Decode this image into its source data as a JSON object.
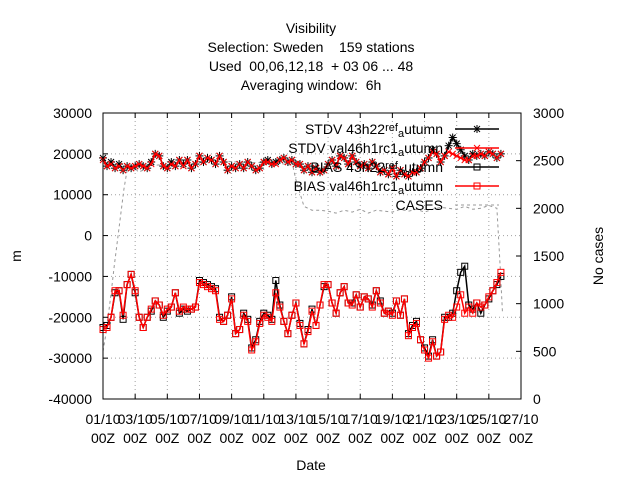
{
  "chart_data": {
    "type": "line",
    "title_lines": [
      "Visibility",
      "Selection: Sweden    159 stations",
      "Used  00,06,12,18  + 03 06 ... 48",
      "Averaging window:  6h"
    ],
    "xlabel": "Date",
    "ylabel": "m",
    "y2label": "No cases",
    "xlim": [
      1,
      27
    ],
    "ylim": [
      -40000,
      30000
    ],
    "y2lim": [
      0,
      3000
    ],
    "x_ticks": [
      {
        "x": 1,
        "line1": "01/10",
        "line2": "00Z"
      },
      {
        "x": 3,
        "line1": "03/10",
        "line2": "00Z"
      },
      {
        "x": 5,
        "line1": "05/10",
        "line2": "00Z"
      },
      {
        "x": 7,
        "line1": "07/10",
        "line2": "00Z"
      },
      {
        "x": 9,
        "line1": "09/10",
        "line2": "00Z"
      },
      {
        "x": 11,
        "line1": "11/10",
        "line2": "00Z"
      },
      {
        "x": 13,
        "line1": "13/10",
        "line2": "00Z"
      },
      {
        "x": 15,
        "line1": "15/10",
        "line2": "00Z"
      },
      {
        "x": 17,
        "line1": "17/10",
        "line2": "00Z"
      },
      {
        "x": 19,
        "line1": "19/10",
        "line2": "00Z"
      },
      {
        "x": 21,
        "line1": "21/10",
        "line2": "00Z"
      },
      {
        "x": 23,
        "line1": "23/10",
        "line2": "00Z"
      },
      {
        "x": 25,
        "line1": "25/10",
        "line2": "00Z"
      },
      {
        "x": 27,
        "line1": "27/10",
        "line2": "00Z"
      }
    ],
    "y_ticks": [
      -40000,
      -30000,
      -20000,
      -10000,
      0,
      10000,
      20000,
      30000
    ],
    "y2_ticks": [
      0,
      500,
      1000,
      1500,
      2000,
      2500,
      3000
    ],
    "grid": true,
    "legend_position": "top-right",
    "series": [
      {
        "name": "STDV 43h22_ref_autumn",
        "legend_parts": [
          [
            "STDV 43h22",
            "0"
          ],
          [
            "ref",
            "3"
          ],
          [
            "a",
            "-3"
          ],
          [
            "utumn",
            "0"
          ]
        ],
        "axis": "y1",
        "color": "#000000",
        "marker": "star",
        "x": [
          1.0,
          1.25,
          1.5,
          1.75,
          2.0,
          2.25,
          2.5,
          2.75,
          3.0,
          3.25,
          3.5,
          3.75,
          4.0,
          4.25,
          4.5,
          4.75,
          5.0,
          5.25,
          5.5,
          5.75,
          6.0,
          6.25,
          6.5,
          6.75,
          7.0,
          7.25,
          7.5,
          7.75,
          8.0,
          8.25,
          8.5,
          8.75,
          9.0,
          9.25,
          9.5,
          9.75,
          10.0,
          10.25,
          10.5,
          10.75,
          11.0,
          11.25,
          11.5,
          11.75,
          12.0,
          12.25,
          12.5,
          12.75,
          13.0,
          13.25,
          13.5,
          13.75,
          14.0,
          14.25,
          14.5,
          14.75,
          15.0,
          15.25,
          15.5,
          15.75,
          16.0,
          16.25,
          16.5,
          16.75,
          17.0,
          17.25,
          17.5,
          17.75,
          18.0,
          18.25,
          18.5,
          18.75,
          19.0,
          19.25,
          19.5,
          19.75,
          20.0,
          20.25,
          20.5,
          20.75,
          21.0,
          21.25,
          21.5,
          21.75,
          22.0,
          22.25,
          22.5,
          22.75,
          23.0,
          23.25,
          23.5,
          23.75,
          24.0,
          24.25,
          24.5,
          24.75,
          25.0,
          25.25,
          25.5,
          25.75
        ],
        "y": [
          19000,
          17000,
          18000,
          16500,
          17500,
          16000,
          17000,
          16500,
          17000,
          17500,
          17000,
          16500,
          18000,
          20000,
          19500,
          17000,
          16500,
          18000,
          17000,
          18500,
          17500,
          18500,
          16500,
          17500,
          19500,
          18000,
          19000,
          18500,
          17500,
          19500,
          18000,
          16000,
          17000,
          16500,
          17500,
          16500,
          18000,
          17000,
          16000,
          16500,
          18000,
          18500,
          17500,
          18000,
          18500,
          19000,
          18000,
          18500,
          17500,
          17500,
          16000,
          17000,
          15500,
          16500,
          15500,
          16000,
          17500,
          18500,
          17000,
          19500,
          19000,
          17500,
          19500,
          18000,
          17000,
          17500,
          16500,
          18000,
          17000,
          15500,
          16000,
          15000,
          16500,
          14500,
          16000,
          15000,
          14500,
          15500,
          15500,
          16500,
          18000,
          19000,
          21000,
          20000,
          18000,
          19500,
          22000,
          24000,
          22500,
          21000,
          19500,
          18500,
          20000,
          19500,
          20000,
          19500,
          20500,
          20000,
          19000,
          20000
        ]
      },
      {
        "name": "STDV val46h1rc1_autumn",
        "legend_parts": [
          [
            "STDV val46h1rc1",
            "0"
          ],
          [
            "a",
            "-3"
          ],
          [
            "utumn",
            "0"
          ]
        ],
        "axis": "y1",
        "color": "#ff0000",
        "marker": "x",
        "x": [
          1.0,
          1.25,
          1.5,
          1.75,
          2.0,
          2.25,
          2.5,
          2.75,
          3.0,
          3.25,
          3.5,
          3.75,
          4.0,
          4.25,
          4.5,
          4.75,
          5.0,
          5.25,
          5.5,
          5.75,
          6.0,
          6.25,
          6.5,
          6.75,
          7.0,
          7.25,
          7.5,
          7.75,
          8.0,
          8.25,
          8.5,
          8.75,
          9.0,
          9.25,
          9.5,
          9.75,
          10.0,
          10.25,
          10.5,
          10.75,
          11.0,
          11.25,
          11.5,
          11.75,
          12.0,
          12.25,
          12.5,
          12.75,
          13.0,
          13.25,
          13.5,
          13.75,
          14.0,
          14.25,
          14.5,
          14.75,
          15.0,
          15.25,
          15.5,
          15.75,
          16.0,
          16.25,
          16.5,
          16.75,
          17.0,
          17.25,
          17.5,
          17.75,
          18.0,
          18.25,
          18.5,
          18.75,
          19.0,
          19.25,
          19.5,
          19.75,
          20.0,
          20.25,
          20.5,
          20.75,
          21.0,
          21.25,
          21.5,
          21.75,
          22.0,
          22.25,
          22.5,
          22.75,
          23.0,
          23.25,
          23.5,
          23.75,
          24.0,
          24.25,
          24.5,
          24.75,
          25.0,
          25.25,
          25.5,
          25.75
        ],
        "y": [
          18500,
          17000,
          17500,
          16500,
          17000,
          16000,
          17000,
          16500,
          17000,
          17500,
          17000,
          16500,
          17500,
          20000,
          19500,
          17000,
          16500,
          17500,
          17000,
          18500,
          17000,
          18500,
          16500,
          17500,
          19500,
          18000,
          19000,
          18500,
          17500,
          19500,
          18000,
          16000,
          17000,
          16500,
          17500,
          16500,
          18000,
          17000,
          16000,
          16500,
          18000,
          18000,
          17500,
          17500,
          18500,
          19000,
          18000,
          18500,
          17500,
          17500,
          16000,
          17000,
          15500,
          16500,
          15500,
          16000,
          17500,
          18500,
          17000,
          19500,
          19000,
          17500,
          19500,
          18000,
          17000,
          17500,
          16500,
          18000,
          17000,
          15500,
          16000,
          15000,
          16500,
          14500,
          16000,
          15000,
          14500,
          15500,
          15500,
          16500,
          18000,
          19000,
          20500,
          20000,
          18000,
          19500,
          20500,
          20000,
          19500,
          19000,
          18500,
          18500,
          19500,
          19500,
          20000,
          19500,
          20500,
          20000,
          19000,
          20000
        ]
      },
      {
        "name": "BIAS 43h22_ref_autumn",
        "legend_parts": [
          [
            "BIAS 43h22",
            "0"
          ],
          [
            "ref",
            "3"
          ],
          [
            "a",
            "-3"
          ],
          [
            "utumn",
            "0"
          ]
        ],
        "axis": "y1",
        "color": "#000000",
        "marker": "square",
        "x": [
          1.0,
          1.25,
          1.5,
          1.75,
          2.0,
          2.25,
          2.5,
          2.75,
          3.0,
          3.25,
          3.5,
          3.75,
          4.0,
          4.25,
          4.5,
          4.75,
          5.0,
          5.25,
          5.5,
          5.75,
          6.0,
          6.25,
          6.5,
          6.75,
          7.0,
          7.25,
          7.5,
          7.75,
          8.0,
          8.25,
          8.5,
          8.75,
          9.0,
          9.25,
          9.5,
          9.75,
          10.0,
          10.25,
          10.5,
          10.75,
          11.0,
          11.25,
          11.5,
          11.75,
          12.0,
          12.25,
          12.5,
          12.75,
          13.0,
          13.25,
          13.5,
          13.75,
          14.0,
          14.25,
          14.5,
          14.75,
          15.0,
          15.25,
          15.5,
          15.75,
          16.0,
          16.25,
          16.5,
          16.75,
          17.0,
          17.25,
          17.5,
          17.75,
          18.0,
          18.25,
          18.5,
          18.75,
          19.0,
          19.25,
          19.5,
          19.75,
          20.0,
          20.25,
          20.5,
          20.75,
          21.0,
          21.25,
          21.5,
          21.75,
          22.0,
          22.25,
          22.5,
          22.75,
          23.0,
          23.25,
          23.5,
          23.75,
          24.0,
          24.25,
          24.5,
          24.75,
          25.0,
          25.25,
          25.5,
          25.75
        ],
        "y": [
          -22500,
          -22000,
          -20000,
          -14000,
          -13500,
          -20500,
          -12000,
          -9500,
          -14000,
          -20000,
          -22500,
          -20000,
          -18500,
          -16000,
          -17000,
          -20000,
          -18500,
          -17500,
          -14000,
          -19000,
          -18000,
          -18500,
          -18000,
          -17500,
          -11000,
          -11500,
          -12000,
          -12500,
          -13000,
          -20000,
          -21000,
          -19500,
          -15000,
          -24000,
          -23000,
          -19000,
          -20500,
          -27500,
          -25500,
          -21000,
          -19000,
          -19500,
          -20500,
          -11000,
          -17000,
          -21000,
          -24000,
          -19500,
          -16500,
          -21500,
          -26500,
          -23000,
          -18000,
          -22000,
          -17000,
          -12500,
          -12000,
          -16500,
          -19000,
          -14000,
          -12500,
          -16500,
          -16500,
          -14500,
          -17500,
          -15000,
          -15500,
          -17000,
          -13500,
          -16000,
          -19000,
          -18500,
          -19000,
          -16000,
          -19500,
          -15500,
          -24000,
          -22000,
          -21000,
          -25500,
          -27500,
          -29500,
          -25500,
          -29500,
          -28500,
          -20000,
          -20000,
          -19000,
          -13500,
          -9000,
          -7500,
          -17000,
          -18000,
          -16500,
          -19000,
          -17000,
          -15500,
          -13500,
          -12000,
          -10000
        ]
      },
      {
        "name": "BIAS val46h1rc1_autumn",
        "legend_parts": [
          [
            "BIAS val46h1rc1",
            "0"
          ],
          [
            "a",
            "-3"
          ],
          [
            "utumn",
            "0"
          ]
        ],
        "axis": "y1",
        "color": "#ff0000",
        "marker": "square",
        "x": [
          1.0,
          1.25,
          1.5,
          1.75,
          2.0,
          2.25,
          2.5,
          2.75,
          3.0,
          3.25,
          3.5,
          3.75,
          4.0,
          4.25,
          4.5,
          4.75,
          5.0,
          5.25,
          5.5,
          5.75,
          6.0,
          6.25,
          6.5,
          6.75,
          7.0,
          7.25,
          7.5,
          7.75,
          8.0,
          8.25,
          8.5,
          8.75,
          9.0,
          9.25,
          9.5,
          9.75,
          10.0,
          10.25,
          10.5,
          10.75,
          11.0,
          11.25,
          11.5,
          11.75,
          12.0,
          12.25,
          12.5,
          12.75,
          13.0,
          13.25,
          13.5,
          13.75,
          14.0,
          14.25,
          14.5,
          14.75,
          15.0,
          15.25,
          15.5,
          15.75,
          16.0,
          16.25,
          16.5,
          16.75,
          17.0,
          17.25,
          17.5,
          17.75,
          18.0,
          18.25,
          18.5,
          18.75,
          19.0,
          19.25,
          19.5,
          19.75,
          20.0,
          20.25,
          20.5,
          20.75,
          21.0,
          21.25,
          21.5,
          21.75,
          22.0,
          22.25,
          22.5,
          22.75,
          23.0,
          23.25,
          23.5,
          23.75,
          24.0,
          24.25,
          24.5,
          24.75,
          25.0,
          25.25,
          25.5,
          25.75
        ],
        "y": [
          -23000,
          -22500,
          -20000,
          -13500,
          -13500,
          -19500,
          -12000,
          -9500,
          -13500,
          -20000,
          -22500,
          -20000,
          -18000,
          -16000,
          -17000,
          -19500,
          -18000,
          -17500,
          -14000,
          -18500,
          -17500,
          -18000,
          -18000,
          -17500,
          -11500,
          -12000,
          -12500,
          -13000,
          -13500,
          -20500,
          -21000,
          -19500,
          -15500,
          -24000,
          -23000,
          -19500,
          -21000,
          -28000,
          -26000,
          -21500,
          -19500,
          -20000,
          -21000,
          -14000,
          -17500,
          -21000,
          -24000,
          -19500,
          -16500,
          -22000,
          -26500,
          -23500,
          -18500,
          -22000,
          -17000,
          -12000,
          -12000,
          -16500,
          -19000,
          -14000,
          -12500,
          -16500,
          -17000,
          -14500,
          -17500,
          -15000,
          -15500,
          -17500,
          -13500,
          -16500,
          -19000,
          -18500,
          -19500,
          -16000,
          -19500,
          -15500,
          -24500,
          -22500,
          -21500,
          -25500,
          -28000,
          -30000,
          -26000,
          -29500,
          -28500,
          -20500,
          -19500,
          -20000,
          -17500,
          -14500,
          -19000,
          -17500,
          -19000,
          -16500,
          -17500,
          -17000,
          -15000,
          -13500,
          -11500,
          -9000
        ]
      },
      {
        "name": "CASES",
        "legend_parts": [
          [
            "CASES",
            "0"
          ]
        ],
        "axis": "y2",
        "color": "#999999",
        "marker": "none",
        "dashed": true,
        "x": [
          1.0,
          1.2,
          1.5,
          1.7,
          2.0,
          2.3,
          2.5,
          3.0,
          3.2,
          3.5,
          4.0,
          5.0,
          6.0,
          7.0,
          8.0,
          9.0,
          10.0,
          11.0,
          12.0,
          12.5,
          12.8,
          13.0,
          13.5,
          14.0,
          14.5,
          15.0,
          15.5,
          16.0,
          16.5,
          17.0,
          17.5,
          18.0,
          18.5,
          19.0,
          19.5,
          20.0,
          20.5,
          21.0,
          21.5,
          22.0,
          22.5,
          23.0,
          23.5,
          24.0,
          24.5,
          25.0,
          25.5,
          25.7,
          25.85
        ],
        "y": [
          500,
          700,
          1100,
          1400,
          1800,
          2200,
          2400,
          2420,
          2380,
          2400,
          2450,
          2460,
          2470,
          2480,
          2500,
          2490,
          2480,
          2480,
          2470,
          2460,
          2450,
          2300,
          2020,
          1980,
          1980,
          1970,
          1950,
          1980,
          1960,
          1990,
          1950,
          1980,
          1970,
          1960,
          1990,
          1970,
          1990,
          1960,
          1990,
          2010,
          2000,
          1990,
          2020,
          1990,
          2000,
          2030,
          2000,
          1400,
          900
        ]
      }
    ]
  }
}
